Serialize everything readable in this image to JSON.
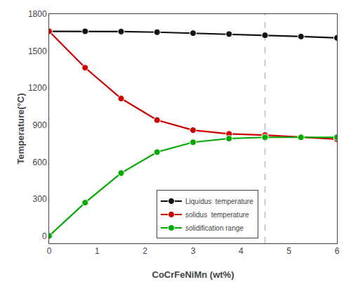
{
  "chart_data": {
    "type": "line",
    "x": [
      0,
      0.75,
      1.5,
      2.25,
      3.0,
      3.75,
      4.5,
      5.25,
      6.0
    ],
    "series": [
      {
        "name": "Liquidus  temperature",
        "color": "#111111",
        "marker": "circle",
        "line_style": "solid",
        "values": [
          1660,
          1660,
          1658,
          1653,
          1645,
          1638,
          1628,
          1618,
          1607
        ]
      },
      {
        "name": "solidus  temperature",
        "color": "#cc0000",
        "marker": "circle",
        "line_style": "solid",
        "values": [
          1660,
          1365,
          1115,
          940,
          858,
          828,
          818,
          800,
          785
        ]
      },
      {
        "name": "solidification range",
        "color": "#00aa00",
        "marker": "circle",
        "line_style": "solid",
        "values": [
          0,
          270,
          510,
          680,
          760,
          790,
          800,
          800,
          800
        ]
      }
    ],
    "vline": {
      "x": 4.5,
      "color": "#bbbbbb",
      "line_style": "dashed"
    },
    "xlabel": "CoCrFeNiMn (wt%)",
    "ylabel": "Temperature(°C)",
    "xlim": [
      0,
      6
    ],
    "ylim": [
      -60,
      1800
    ],
    "xticks": [
      0,
      1,
      2,
      3,
      4,
      5,
      6
    ],
    "yticks": [
      0,
      300,
      600,
      900,
      1200,
      1500,
      1800
    ],
    "grid": false,
    "legend": "lower center"
  }
}
